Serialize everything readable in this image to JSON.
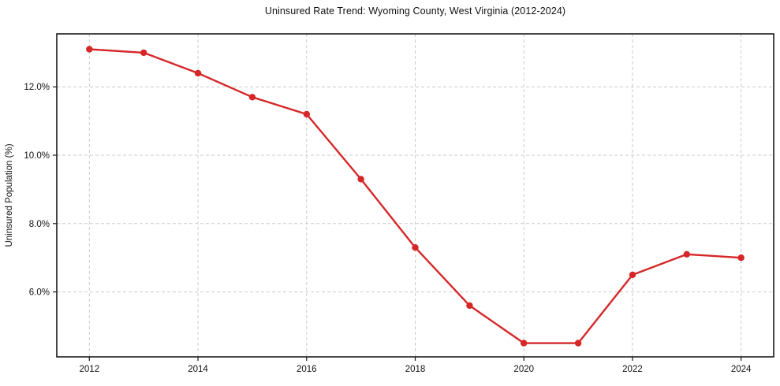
{
  "figure": {
    "title": "Uninsured Rate Trend: Wyoming County, West Virginia (2012-2024)"
  },
  "chart_data": {
    "type": "line",
    "title": "Uninsured Rate Trend: Wyoming County, West Virginia (2012-2024)",
    "xlabel": "",
    "ylabel": "Uninsured Population (%)",
    "x": [
      2012,
      2013,
      2014,
      2015,
      2016,
      2017,
      2018,
      2019,
      2020,
      2021,
      2022,
      2023,
      2024
    ],
    "values": [
      13.1,
      13.0,
      12.4,
      11.7,
      11.2,
      9.3,
      7.3,
      5.6,
      4.5,
      4.5,
      6.5,
      7.1,
      7.0
    ],
    "xticks": [
      2012,
      2014,
      2016,
      2018,
      2020,
      2022,
      2024
    ],
    "xtick_labels": [
      "2012",
      "2014",
      "2016",
      "2018",
      "2020",
      "2022",
      "2024"
    ],
    "yticks": [
      6.0,
      8.0,
      10.0,
      12.0
    ],
    "ytick_labels": [
      "6.0%",
      "8.0%",
      "10.0%",
      "12.0%"
    ],
    "xlim": [
      2011.4,
      2024.6
    ],
    "ylim": [
      4.1,
      13.55
    ],
    "grid": true,
    "grid_style": "dashed",
    "legend": null,
    "style": {
      "line_color": "#d62728",
      "marker_color": "#d62728",
      "grid_color": "#cccccc",
      "spine_color": "#1a1a1a",
      "tick_color": "#1a1a1a",
      "text_color": "#111111",
      "background": "#ffffff",
      "line_width": 2.4,
      "marker_radius": 4.2
    }
  }
}
